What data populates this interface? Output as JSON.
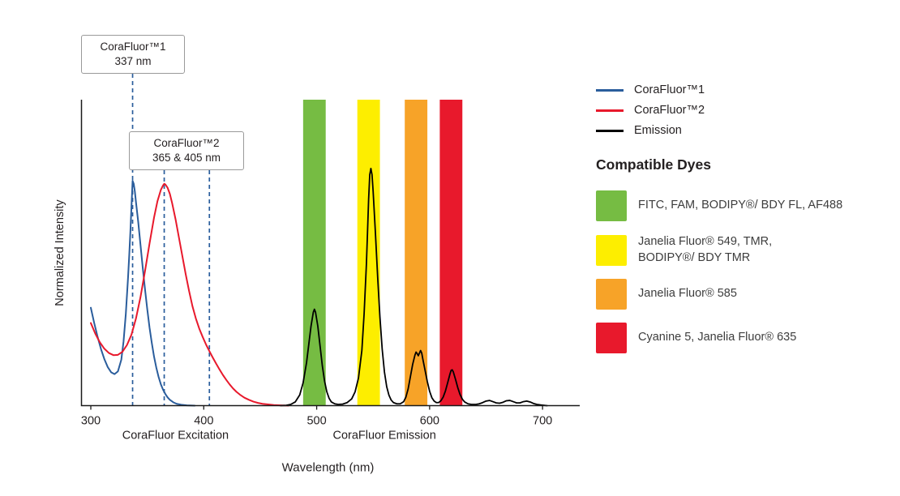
{
  "legend": {
    "series": [
      {
        "label": "CoraFluor™1",
        "color": "#2a5d9c"
      },
      {
        "label": "CoraFluor™2",
        "color": "#e8192c"
      },
      {
        "label": "Emission",
        "color": "#000000"
      }
    ],
    "dyes_heading": "Compatible Dyes",
    "dyes": [
      {
        "label": "FITC, FAM, BODIPY®/ BDY FL, AF488",
        "color": "#76bc43"
      },
      {
        "label": "Janelia Fluor® 549, TMR,\nBODIPY®/ BDY TMR",
        "color": "#fdee00"
      },
      {
        "label": "Janelia Fluor® 585",
        "color": "#f7a328"
      },
      {
        "label": "Cyanine 5, Janelia Fluor® 635",
        "color": "#e8192c"
      }
    ]
  },
  "chart_data": {
    "type": "line",
    "title": "",
    "xlabel": "Wavelength (nm)",
    "ylabel": "Normalized Intensity",
    "xlim": [
      300,
      720
    ],
    "ylim": [
      0,
      1
    ],
    "grid": false,
    "legend_position": "right",
    "x_ticks": [
      300,
      400,
      500,
      600,
      700
    ],
    "x_axis_group_labels": [
      {
        "label": "CoraFluor Excitation",
        "center_nm": 375
      },
      {
        "label": "CoraFluor Emission",
        "center_nm": 560
      }
    ],
    "annotation_line_color": "#2a5d9c",
    "annotations": [
      {
        "line1": "CoraFluor™1",
        "line2": "337 nm",
        "lines_at_nm": [
          337
        ]
      },
      {
        "line1": "CoraFluor™2",
        "line2": "365 & 405 nm",
        "lines_at_nm": [
          365,
          405
        ]
      }
    ],
    "bands": [
      {
        "key": "band-fitc-fam-bodipy-af488",
        "x0": 488,
        "x1": 508,
        "color": "#76bc43"
      },
      {
        "key": "band-jf549-tmr",
        "x0": 536,
        "x1": 556,
        "color": "#fdee00"
      },
      {
        "key": "band-jf585",
        "x0": 578,
        "x1": 598,
        "color": "#f7a328"
      },
      {
        "key": "band-cy5-jf635",
        "x0": 609,
        "x1": 629,
        "color": "#e8192c"
      }
    ],
    "series": [
      {
        "name": "CoraFluor™1",
        "key": "corafluor1-excitation-curve",
        "color": "#2a5d9c",
        "points": [
          [
            300,
            0.32
          ],
          [
            303,
            0.27
          ],
          [
            306,
            0.225
          ],
          [
            309,
            0.185
          ],
          [
            312,
            0.152
          ],
          [
            315,
            0.126
          ],
          [
            318,
            0.109
          ],
          [
            321,
            0.103
          ],
          [
            324,
            0.112
          ],
          [
            327,
            0.15
          ],
          [
            329,
            0.21
          ],
          [
            331,
            0.3
          ],
          [
            333,
            0.42
          ],
          [
            334,
            0.49
          ],
          [
            335,
            0.565
          ],
          [
            336,
            0.65
          ],
          [
            337,
            0.735
          ],
          [
            338,
            0.725
          ],
          [
            339,
            0.7
          ],
          [
            340,
            0.665
          ],
          [
            342,
            0.6
          ],
          [
            344,
            0.525
          ],
          [
            346,
            0.45
          ],
          [
            348,
            0.38
          ],
          [
            350,
            0.315
          ],
          [
            352,
            0.255
          ],
          [
            354,
            0.205
          ],
          [
            356,
            0.16
          ],
          [
            358,
            0.124
          ],
          [
            360,
            0.094
          ],
          [
            362,
            0.07
          ],
          [
            364,
            0.052
          ],
          [
            366,
            0.038
          ],
          [
            368,
            0.027
          ],
          [
            370,
            0.019
          ],
          [
            373,
            0.011
          ],
          [
            376,
            0.006
          ],
          [
            380,
            0.003
          ],
          [
            385,
            0.001
          ],
          [
            392,
            0
          ]
        ]
      },
      {
        "name": "CoraFluor™2",
        "key": "corafluor2-excitation-curve",
        "color": "#e8192c",
        "points": [
          [
            300,
            0.27
          ],
          [
            304,
            0.235
          ],
          [
            308,
            0.207
          ],
          [
            312,
            0.186
          ],
          [
            316,
            0.172
          ],
          [
            320,
            0.165
          ],
          [
            324,
            0.166
          ],
          [
            328,
            0.176
          ],
          [
            332,
            0.198
          ],
          [
            336,
            0.232
          ],
          [
            340,
            0.285
          ],
          [
            344,
            0.355
          ],
          [
            348,
            0.44
          ],
          [
            352,
            0.53
          ],
          [
            356,
            0.615
          ],
          [
            359,
            0.668
          ],
          [
            362,
            0.705
          ],
          [
            364,
            0.72
          ],
          [
            365,
            0.725
          ],
          [
            366,
            0.723
          ],
          [
            368,
            0.712
          ],
          [
            370,
            0.692
          ],
          [
            372,
            0.662
          ],
          [
            375,
            0.61
          ],
          [
            378,
            0.55
          ],
          [
            381,
            0.49
          ],
          [
            384,
            0.43
          ],
          [
            387,
            0.375
          ],
          [
            390,
            0.325
          ],
          [
            393,
            0.285
          ],
          [
            396,
            0.252
          ],
          [
            399,
            0.225
          ],
          [
            402,
            0.2
          ],
          [
            405,
            0.178
          ],
          [
            408,
            0.157
          ],
          [
            411,
            0.137
          ],
          [
            414,
            0.118
          ],
          [
            417,
            0.1
          ],
          [
            420,
            0.084
          ],
          [
            423,
            0.069
          ],
          [
            426,
            0.056
          ],
          [
            429,
            0.045
          ],
          [
            432,
            0.036
          ],
          [
            436,
            0.026
          ],
          [
            440,
            0.019
          ],
          [
            444,
            0.013
          ],
          [
            448,
            0.009
          ],
          [
            452,
            0.006
          ],
          [
            457,
            0.004
          ],
          [
            462,
            0.002
          ],
          [
            468,
            0.001
          ],
          [
            475,
            0
          ]
        ]
      },
      {
        "name": "Emission",
        "key": "emission-curve",
        "color": "#000000",
        "points": [
          [
            468,
            0
          ],
          [
            473,
            0.001
          ],
          [
            477,
            0.004
          ],
          [
            481,
            0.012
          ],
          [
            485,
            0.035
          ],
          [
            488,
            0.075
          ],
          [
            491,
            0.14
          ],
          [
            493,
            0.2
          ],
          [
            495,
            0.26
          ],
          [
            497,
            0.305
          ],
          [
            498,
            0.315
          ],
          [
            499,
            0.305
          ],
          [
            501,
            0.26
          ],
          [
            503,
            0.195
          ],
          [
            505,
            0.13
          ],
          [
            507,
            0.08
          ],
          [
            509,
            0.045
          ],
          [
            511,
            0.024
          ],
          [
            513,
            0.012
          ],
          [
            516,
            0.006
          ],
          [
            519,
            0.004
          ],
          [
            523,
            0.005
          ],
          [
            527,
            0.01
          ],
          [
            531,
            0.022
          ],
          [
            534,
            0.045
          ],
          [
            537,
            0.09
          ],
          [
            540,
            0.18
          ],
          [
            542,
            0.3
          ],
          [
            544,
            0.46
          ],
          [
            545,
            0.565
          ],
          [
            546,
            0.675
          ],
          [
            547,
            0.755
          ],
          [
            548,
            0.775
          ],
          [
            549,
            0.755
          ],
          [
            550,
            0.7
          ],
          [
            552,
            0.565
          ],
          [
            554,
            0.42
          ],
          [
            556,
            0.29
          ],
          [
            558,
            0.185
          ],
          [
            560,
            0.11
          ],
          [
            562,
            0.062
          ],
          [
            564,
            0.034
          ],
          [
            566,
            0.018
          ],
          [
            568,
            0.01
          ],
          [
            571,
            0.006
          ],
          [
            574,
            0.006
          ],
          [
            577,
            0.013
          ],
          [
            579,
            0.028
          ],
          [
            581,
            0.055
          ],
          [
            583,
            0.095
          ],
          [
            585,
            0.135
          ],
          [
            587,
            0.165
          ],
          [
            588,
            0.175
          ],
          [
            589,
            0.17
          ],
          [
            590,
            0.163
          ],
          [
            591,
            0.172
          ],
          [
            592,
            0.18
          ],
          [
            593,
            0.172
          ],
          [
            594,
            0.152
          ],
          [
            596,
            0.115
          ],
          [
            598,
            0.078
          ],
          [
            600,
            0.047
          ],
          [
            602,
            0.026
          ],
          [
            604,
            0.015
          ],
          [
            606,
            0.01
          ],
          [
            608,
            0.01
          ],
          [
            610,
            0.016
          ],
          [
            612,
            0.028
          ],
          [
            614,
            0.048
          ],
          [
            616,
            0.075
          ],
          [
            618,
            0.103
          ],
          [
            619,
            0.115
          ],
          [
            620,
            0.117
          ],
          [
            621,
            0.11
          ],
          [
            623,
            0.085
          ],
          [
            625,
            0.058
          ],
          [
            627,
            0.036
          ],
          [
            629,
            0.021
          ],
          [
            631,
            0.012
          ],
          [
            634,
            0.006
          ],
          [
            637,
            0.004
          ],
          [
            641,
            0.004
          ],
          [
            644,
            0.006
          ],
          [
            647,
            0.01
          ],
          [
            650,
            0.015
          ],
          [
            653,
            0.017
          ],
          [
            656,
            0.013
          ],
          [
            659,
            0.009
          ],
          [
            662,
            0.008
          ],
          [
            665,
            0.011
          ],
          [
            668,
            0.016
          ],
          [
            671,
            0.017
          ],
          [
            674,
            0.013
          ],
          [
            677,
            0.009
          ],
          [
            680,
            0.009
          ],
          [
            683,
            0.013
          ],
          [
            686,
            0.015
          ],
          [
            689,
            0.012
          ],
          [
            692,
            0.007
          ],
          [
            695,
            0.004
          ],
          [
            699,
            0.002
          ],
          [
            704,
            0
          ]
        ]
      }
    ]
  }
}
